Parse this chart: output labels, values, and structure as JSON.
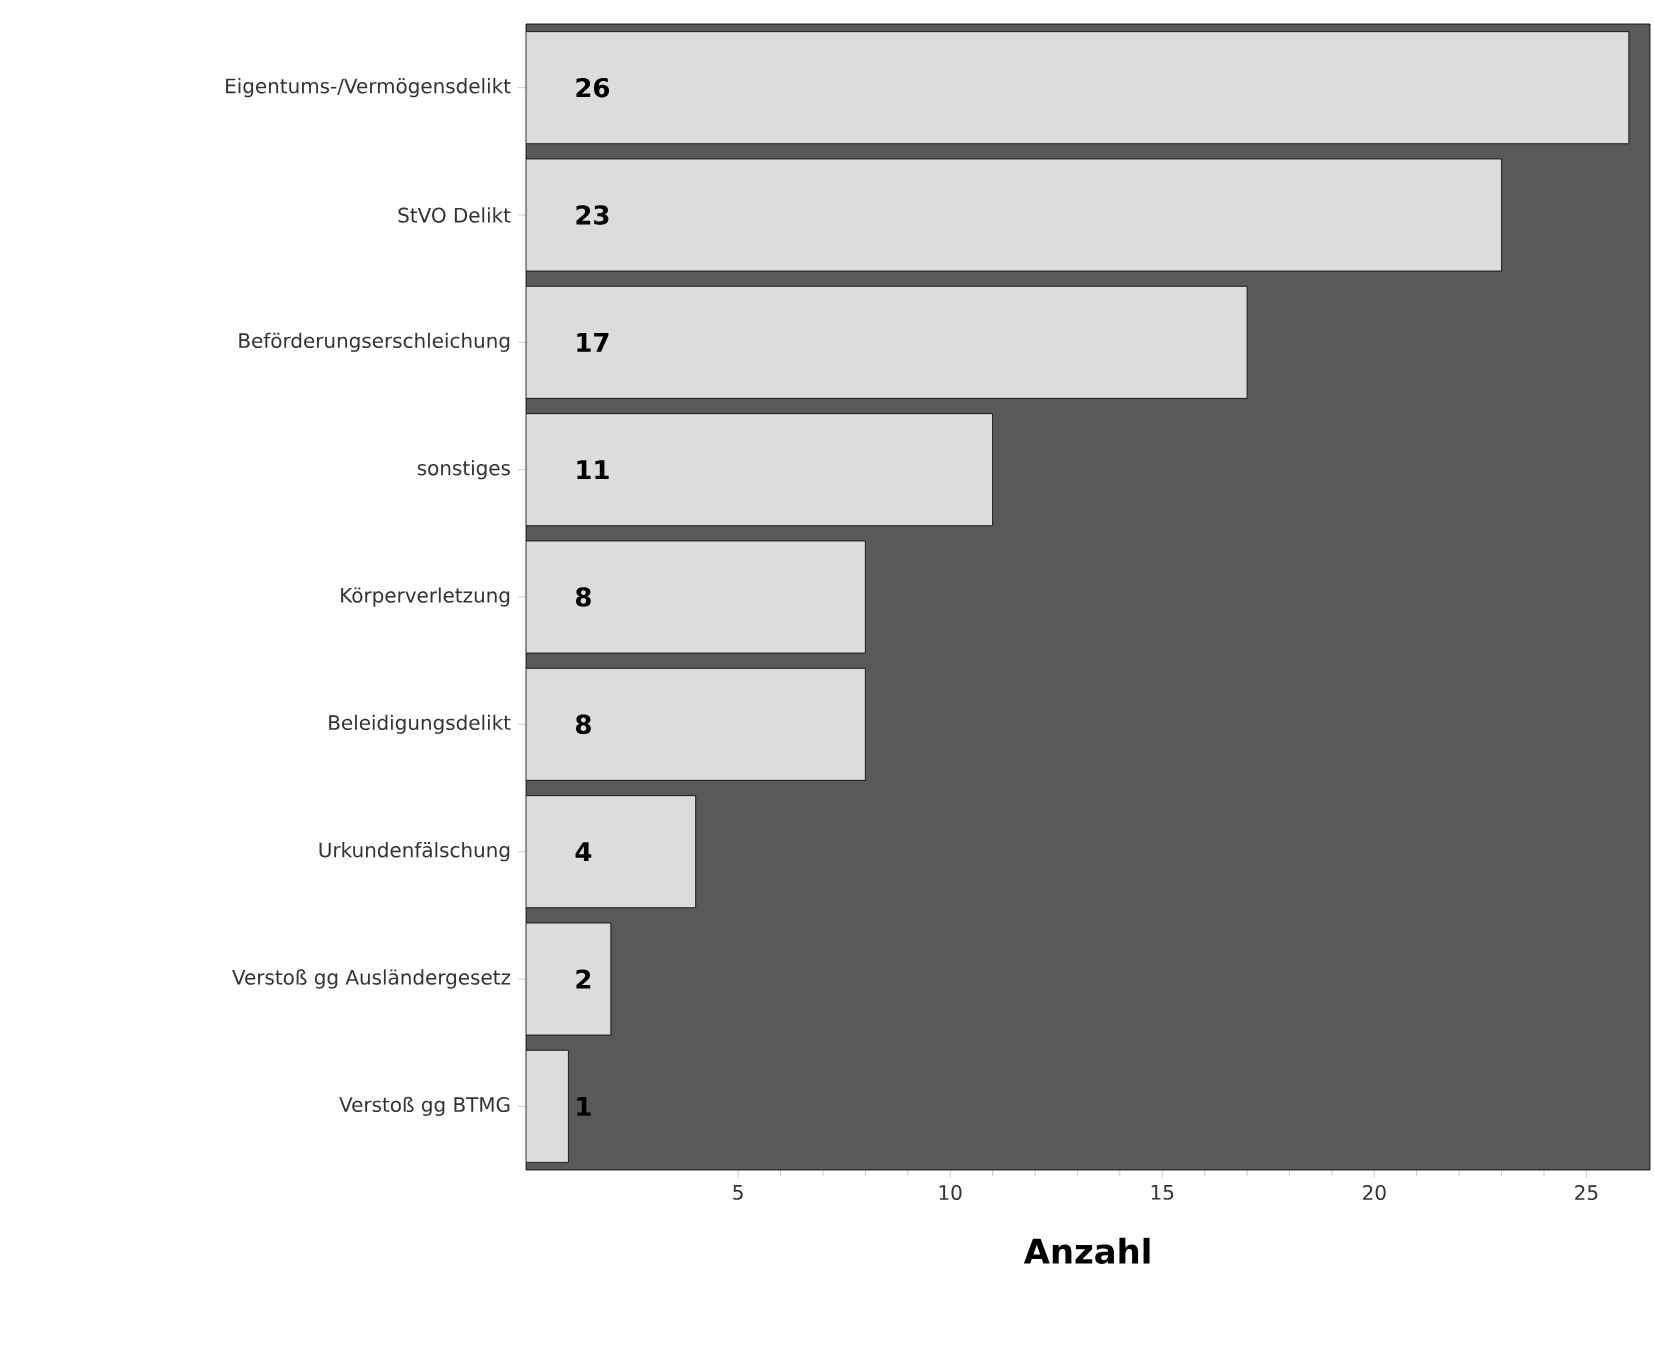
{
  "chart_data": {
    "type": "bar",
    "orientation": "horizontal",
    "xlabel": "Anzahl",
    "categories": [
      "Eigentums-/Vermögensdelikt",
      "StVO Delikt",
      "Beförderungserschleichung",
      "sonstiges",
      "Körperverletzung",
      "Beleidigungsdelikt",
      "Urkundenfälschung",
      "Verstoß gg Ausländergesetz",
      "Verstoß gg BTMG"
    ],
    "values": [
      26,
      23,
      17,
      11,
      8,
      8,
      4,
      2,
      1
    ],
    "color": "#dcdcdc",
    "data_labels": true,
    "grid": false,
    "xlim": [
      0,
      26.5
    ],
    "xticks": [
      5,
      10,
      15,
      20,
      25
    ]
  }
}
